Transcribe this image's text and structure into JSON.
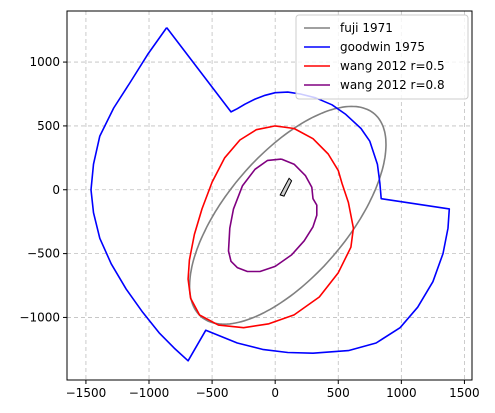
{
  "chart_data": {
    "type": "line",
    "title": "",
    "xlabel": "",
    "ylabel": "",
    "xlim": [
      -1650,
      1560
    ],
    "ylim": [
      -1490,
      1400
    ],
    "x_ticks": [
      -1500,
      -1000,
      -500,
      0,
      500,
      1000,
      1500
    ],
    "y_ticks": [
      -1000,
      -500,
      0,
      500,
      1000
    ],
    "x_tick_labels": [
      "−1500",
      "−1000",
      "−500",
      "0",
      "500",
      "1000",
      "1500"
    ],
    "y_tick_labels": [
      "−1000",
      "−500",
      "0",
      "500",
      "1000"
    ],
    "grid": true,
    "legend_position": "top-right",
    "series": [
      {
        "name": "fuji 1971",
        "color": "#808080",
        "shape": "ellipse",
        "ellipse": {
          "cx": 100,
          "cy": -200,
          "a": 1050,
          "b": 480,
          "angle_deg": 49
        }
      },
      {
        "name": "goodwin 1975",
        "color": "#0000ff",
        "points": [
          [
            -860,
            1270
          ],
          [
            -350,
            610
          ],
          [
            -300,
            635
          ],
          [
            -240,
            670
          ],
          [
            -160,
            710
          ],
          [
            -80,
            740
          ],
          [
            0,
            760
          ],
          [
            100,
            765
          ],
          [
            200,
            750
          ],
          [
            320,
            720
          ],
          [
            450,
            665
          ],
          [
            560,
            590
          ],
          [
            680,
            480
          ],
          [
            750,
            380
          ],
          [
            810,
            200
          ],
          [
            830,
            50
          ],
          [
            840,
            -70
          ],
          [
            1380,
            -150
          ],
          [
            1370,
            -300
          ],
          [
            1330,
            -500
          ],
          [
            1250,
            -720
          ],
          [
            1130,
            -920
          ],
          [
            990,
            -1080
          ],
          [
            800,
            -1200
          ],
          [
            580,
            -1260
          ],
          [
            300,
            -1280
          ],
          [
            100,
            -1275
          ],
          [
            -100,
            -1250
          ],
          [
            -300,
            -1200
          ],
          [
            -550,
            -1100
          ],
          [
            -690,
            -1340
          ],
          [
            -800,
            -1240
          ],
          [
            -920,
            -1120
          ],
          [
            -1050,
            -960
          ],
          [
            -1180,
            -780
          ],
          [
            -1300,
            -580
          ],
          [
            -1390,
            -380
          ],
          [
            -1440,
            -180
          ],
          [
            -1460,
            0
          ],
          [
            -1440,
            200
          ],
          [
            -1390,
            420
          ],
          [
            -1280,
            640
          ],
          [
            -1150,
            840
          ],
          [
            -1010,
            1060
          ],
          [
            -860,
            1270
          ]
        ]
      },
      {
        "name": "wang 2012 r=0.5",
        "color": "#ff0000",
        "points": [
          [
            0,
            500
          ],
          [
            150,
            480
          ],
          [
            300,
            400
          ],
          [
            420,
            280
          ],
          [
            500,
            150
          ],
          [
            530,
            50
          ],
          [
            580,
            -100
          ],
          [
            620,
            -300
          ],
          [
            600,
            -450
          ],
          [
            500,
            -650
          ],
          [
            350,
            -840
          ],
          [
            150,
            -980
          ],
          [
            -50,
            -1050
          ],
          [
            -250,
            -1080
          ],
          [
            -450,
            -1060
          ],
          [
            -600,
            -980
          ],
          [
            -670,
            -850
          ],
          [
            -690,
            -700
          ],
          [
            -680,
            -550
          ],
          [
            -640,
            -350
          ],
          [
            -580,
            -150
          ],
          [
            -500,
            60
          ],
          [
            -400,
            250
          ],
          [
            -280,
            390
          ],
          [
            -150,
            470
          ],
          [
            0,
            500
          ]
        ]
      },
      {
        "name": "wang 2012 r=0.8",
        "color": "#800080",
        "points": [
          [
            50,
            240
          ],
          [
            150,
            200
          ],
          [
            240,
            110
          ],
          [
            290,
            20
          ],
          [
            300,
            -70
          ],
          [
            330,
            -120
          ],
          [
            330,
            -200
          ],
          [
            300,
            -290
          ],
          [
            230,
            -400
          ],
          [
            130,
            -510
          ],
          [
            0,
            -600
          ],
          [
            -120,
            -640
          ],
          [
            -220,
            -640
          ],
          [
            -300,
            -610
          ],
          [
            -350,
            -560
          ],
          [
            -370,
            -480
          ],
          [
            -360,
            -300
          ],
          [
            -330,
            -150
          ],
          [
            -260,
            30
          ],
          [
            -160,
            160
          ],
          [
            -60,
            230
          ],
          [
            50,
            240
          ]
        ]
      },
      {
        "name": "",
        "color": "#000000",
        "fill": "#d0d0d0",
        "points": [
          [
            40,
            -40
          ],
          [
            110,
            90
          ],
          [
            130,
            70
          ],
          [
            70,
            -50
          ],
          [
            40,
            -40
          ]
        ]
      }
    ]
  }
}
